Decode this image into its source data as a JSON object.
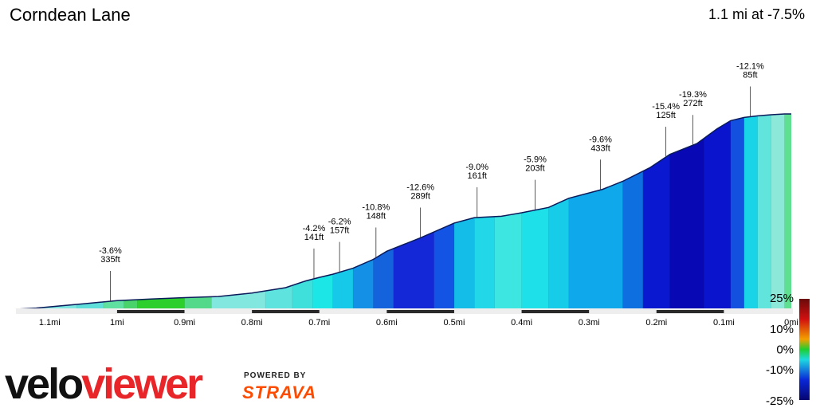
{
  "title": "Corndean Lane",
  "summary": "1.1 mi at -7.5%",
  "logo": {
    "part1": "velo",
    "part2": "viewer"
  },
  "powered_by": "POWERED BY",
  "strava": "STRAVA",
  "chart_data": {
    "type": "area",
    "title": "Corndean Lane",
    "xlabel": "",
    "ylabel": "",
    "x_unit": "mi",
    "xlim": [
      1.15,
      0
    ],
    "x_ticks": [
      "1.1mi",
      "1mi",
      "0.9mi",
      "0.8mi",
      "0.7mi",
      "0.6mi",
      "0.5mi",
      "0.4mi",
      "0.3mi",
      "0.2mi",
      "0.1mi",
      "0mi"
    ],
    "x_tick_values": [
      1.1,
      1.0,
      0.9,
      0.8,
      0.7,
      0.6,
      0.5,
      0.4,
      0.3,
      0.2,
      0.1,
      0
    ],
    "profile": {
      "x": [
        1.15,
        1.12,
        1.05,
        1.0,
        0.95,
        0.9,
        0.85,
        0.8,
        0.75,
        0.72,
        0.7,
        0.68,
        0.65,
        0.62,
        0.6,
        0.55,
        0.5,
        0.47,
        0.43,
        0.4,
        0.36,
        0.33,
        0.28,
        0.25,
        0.21,
        0.18,
        0.14,
        0.11,
        0.09,
        0.07,
        0.05,
        0.03,
        0.01,
        0
      ],
      "elev_ft": [
        0,
        4,
        20,
        32,
        38,
        43,
        47,
        60,
        80,
        105,
        118,
        130,
        152,
        185,
        215,
        265,
        320,
        340,
        345,
        358,
        378,
        412,
        445,
        475,
        525,
        575,
        615,
        670,
        700,
        712,
        718,
        722,
        725,
        725
      ]
    },
    "segments": [
      {
        "x0": 1.15,
        "x1": 1.12,
        "color": "#22b840"
      },
      {
        "x0": 1.12,
        "x1": 1.06,
        "color": "#7ee6e0"
      },
      {
        "x0": 1.06,
        "x1": 1.02,
        "color": "#5edfd9"
      },
      {
        "x0": 1.02,
        "x1": 0.99,
        "color": "#60e0a0"
      },
      {
        "x0": 0.99,
        "x1": 0.97,
        "color": "#4bd36b"
      },
      {
        "x0": 0.97,
        "x1": 0.9,
        "color": "#2ccf2c"
      },
      {
        "x0": 0.9,
        "x1": 0.86,
        "color": "#54d98a"
      },
      {
        "x0": 0.86,
        "x1": 0.78,
        "color": "#82e8df"
      },
      {
        "x0": 0.78,
        "x1": 0.74,
        "color": "#5ee3df"
      },
      {
        "x0": 0.74,
        "x1": 0.71,
        "color": "#3fe0dc"
      },
      {
        "x0": 0.71,
        "x1": 0.68,
        "color": "#1de6e6"
      },
      {
        "x0": 0.68,
        "x1": 0.65,
        "color": "#16c9e8"
      },
      {
        "x0": 0.65,
        "x1": 0.62,
        "color": "#1490e6"
      },
      {
        "x0": 0.62,
        "x1": 0.59,
        "color": "#1463dc"
      },
      {
        "x0": 0.59,
        "x1": 0.53,
        "color": "#1428d8"
      },
      {
        "x0": 0.53,
        "x1": 0.5,
        "color": "#1454e4"
      },
      {
        "x0": 0.5,
        "x1": 0.47,
        "color": "#13bde8"
      },
      {
        "x0": 0.47,
        "x1": 0.44,
        "color": "#22d8e8"
      },
      {
        "x0": 0.44,
        "x1": 0.4,
        "color": "#3de6e0"
      },
      {
        "x0": 0.4,
        "x1": 0.36,
        "color": "#1de0e8"
      },
      {
        "x0": 0.36,
        "x1": 0.33,
        "color": "#16cce8"
      },
      {
        "x0": 0.33,
        "x1": 0.25,
        "color": "#0fa8ea"
      },
      {
        "x0": 0.25,
        "x1": 0.22,
        "color": "#0e70e0"
      },
      {
        "x0": 0.22,
        "x1": 0.18,
        "color": "#0a18d0"
      },
      {
        "x0": 0.18,
        "x1": 0.13,
        "color": "#0808b4"
      },
      {
        "x0": 0.13,
        "x1": 0.09,
        "color": "#0a14cc"
      },
      {
        "x0": 0.09,
        "x1": 0.07,
        "color": "#1450e0"
      },
      {
        "x0": 0.07,
        "x1": 0.05,
        "color": "#18d4e6"
      },
      {
        "x0": 0.05,
        "x1": 0.03,
        "color": "#60e4dc"
      },
      {
        "x0": 0.03,
        "x1": 0.01,
        "color": "#8ce8d8"
      },
      {
        "x0": 0.01,
        "x1": 0.0,
        "color": "#5ee090"
      }
    ],
    "annotations": [
      {
        "x": 1.01,
        "grade": "-3.6%",
        "length": "335ft"
      },
      {
        "x": 0.708,
        "grade": "-4.2%",
        "length": "141ft"
      },
      {
        "x": 0.67,
        "grade": "-6.2%",
        "length": "157ft"
      },
      {
        "x": 0.616,
        "grade": "-10.8%",
        "length": "148ft"
      },
      {
        "x": 0.55,
        "grade": "-12.6%",
        "length": "289ft"
      },
      {
        "x": 0.466,
        "grade": "-9.0%",
        "length": "161ft"
      },
      {
        "x": 0.38,
        "grade": "-5.9%",
        "length": "203ft"
      },
      {
        "x": 0.283,
        "grade": "-9.6%",
        "length": "433ft"
      },
      {
        "x": 0.186,
        "grade": "-15.4%",
        "length": "125ft"
      },
      {
        "x": 0.146,
        "grade": "-19.3%",
        "length": "272ft"
      },
      {
        "x": 0.061,
        "grade": "-12.1%",
        "length": "85ft"
      }
    ],
    "legend": {
      "labels": [
        "25%",
        "10%",
        "0%",
        "-10%",
        "-25%"
      ],
      "values": [
        25,
        10,
        0,
        -10,
        -25
      ],
      "stops": [
        "#6a0a0a",
        "#d01010",
        "#f2a000",
        "#1ecf30",
        "#1ed8e0",
        "#0a28d8",
        "#050570"
      ]
    }
  }
}
